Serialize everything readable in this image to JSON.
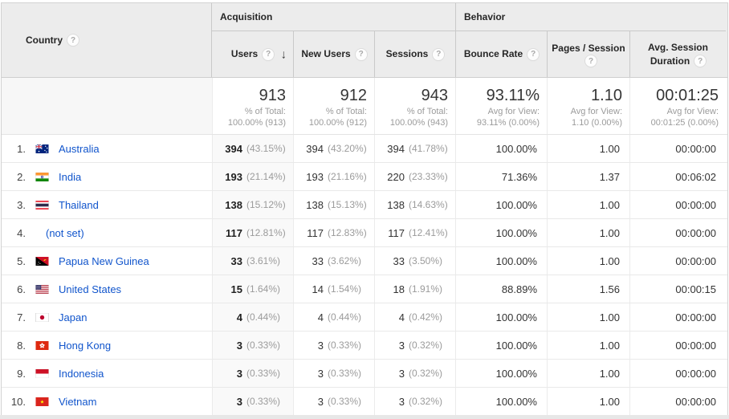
{
  "icons": {
    "help_glyph": "?",
    "sort_desc_glyph": "↓"
  },
  "table": {
    "dimension_header": {
      "label": "Country"
    },
    "groups": [
      {
        "label": "Acquisition"
      },
      {
        "label": "Behavior"
      }
    ],
    "columns": [
      {
        "id": "users",
        "line1": "Users",
        "help_line": 1,
        "sorted": true
      },
      {
        "id": "new_users",
        "line1": "New Users",
        "help_line": 1
      },
      {
        "id": "sessions",
        "line1": "Sessions",
        "help_line": 1
      },
      {
        "id": "bounce_rate",
        "line1": "Bounce Rate",
        "help_line": 1
      },
      {
        "id": "pages_session",
        "line1": "Pages / Session",
        "line2": "",
        "help_line": 2
      },
      {
        "id": "avg_duration",
        "line1": "Avg. Session",
        "line2": "Duration",
        "help_line": 2
      }
    ],
    "totals": {
      "users": {
        "value": "913",
        "sub1": "% of Total:",
        "sub2": "100.00% (913)"
      },
      "new_users": {
        "value": "912",
        "sub1": "% of Total:",
        "sub2": "100.00% (912)"
      },
      "sessions": {
        "value": "943",
        "sub1": "% of Total:",
        "sub2": "100.00% (943)"
      },
      "bounce_rate": {
        "value": "93.11%",
        "sub1": "Avg for View:",
        "sub2": "93.11% (0.00%)"
      },
      "pages_session": {
        "value": "1.10",
        "sub1": "Avg for View:",
        "sub2": "1.10 (0.00%)"
      },
      "avg_duration": {
        "value": "00:01:25",
        "sub1": "Avg for View:",
        "sub2": "00:01:25 (0.00%)"
      }
    },
    "rows": [
      {
        "index": "1.",
        "country": "Australia",
        "flag": "australia",
        "users": "394",
        "users_pct": "(43.15%)",
        "new_users": "394",
        "new_users_pct": "(43.20%)",
        "sessions": "394",
        "sessions_pct": "(41.78%)",
        "bounce_rate": "100.00%",
        "pages_session": "1.00",
        "avg_duration": "00:00:00"
      },
      {
        "index": "2.",
        "country": "India",
        "flag": "india",
        "users": "193",
        "users_pct": "(21.14%)",
        "new_users": "193",
        "new_users_pct": "(21.16%)",
        "sessions": "220",
        "sessions_pct": "(23.33%)",
        "bounce_rate": "71.36%",
        "pages_session": "1.37",
        "avg_duration": "00:06:02"
      },
      {
        "index": "3.",
        "country": "Thailand",
        "flag": "thailand",
        "users": "138",
        "users_pct": "(15.12%)",
        "new_users": "138",
        "new_users_pct": "(15.13%)",
        "sessions": "138",
        "sessions_pct": "(14.63%)",
        "bounce_rate": "100.00%",
        "pages_session": "1.00",
        "avg_duration": "00:00:00"
      },
      {
        "index": "4.",
        "country": "(not set)",
        "flag": null,
        "users": "117",
        "users_pct": "(12.81%)",
        "new_users": "117",
        "new_users_pct": "(12.83%)",
        "sessions": "117",
        "sessions_pct": "(12.41%)",
        "bounce_rate": "100.00%",
        "pages_session": "1.00",
        "avg_duration": "00:00:00"
      },
      {
        "index": "5.",
        "country": "Papua New Guinea",
        "flag": "papua-new-guinea",
        "users": "33",
        "users_pct": "(3.61%)",
        "new_users": "33",
        "new_users_pct": "(3.62%)",
        "sessions": "33",
        "sessions_pct": "(3.50%)",
        "bounce_rate": "100.00%",
        "pages_session": "1.00",
        "avg_duration": "00:00:00"
      },
      {
        "index": "6.",
        "country": "United States",
        "flag": "united-states",
        "users": "15",
        "users_pct": "(1.64%)",
        "new_users": "14",
        "new_users_pct": "(1.54%)",
        "sessions": "18",
        "sessions_pct": "(1.91%)",
        "bounce_rate": "88.89%",
        "pages_session": "1.56",
        "avg_duration": "00:00:15"
      },
      {
        "index": "7.",
        "country": "Japan",
        "flag": "japan",
        "users": "4",
        "users_pct": "(0.44%)",
        "new_users": "4",
        "new_users_pct": "(0.44%)",
        "sessions": "4",
        "sessions_pct": "(0.42%)",
        "bounce_rate": "100.00%",
        "pages_session": "1.00",
        "avg_duration": "00:00:00"
      },
      {
        "index": "8.",
        "country": "Hong Kong",
        "flag": "hong-kong",
        "users": "3",
        "users_pct": "(0.33%)",
        "new_users": "3",
        "new_users_pct": "(0.33%)",
        "sessions": "3",
        "sessions_pct": "(0.32%)",
        "bounce_rate": "100.00%",
        "pages_session": "1.00",
        "avg_duration": "00:00:00"
      },
      {
        "index": "9.",
        "country": "Indonesia",
        "flag": "indonesia",
        "users": "3",
        "users_pct": "(0.33%)",
        "new_users": "3",
        "new_users_pct": "(0.33%)",
        "sessions": "3",
        "sessions_pct": "(0.32%)",
        "bounce_rate": "100.00%",
        "pages_session": "1.00",
        "avg_duration": "00:00:00"
      },
      {
        "index": "10.",
        "country": "Vietnam",
        "flag": "vietnam",
        "users": "3",
        "users_pct": "(0.33%)",
        "new_users": "3",
        "new_users_pct": "(0.33%)",
        "sessions": "3",
        "sessions_pct": "(0.32%)",
        "bounce_rate": "100.00%",
        "pages_session": "1.00",
        "avg_duration": "00:00:00"
      }
    ]
  }
}
